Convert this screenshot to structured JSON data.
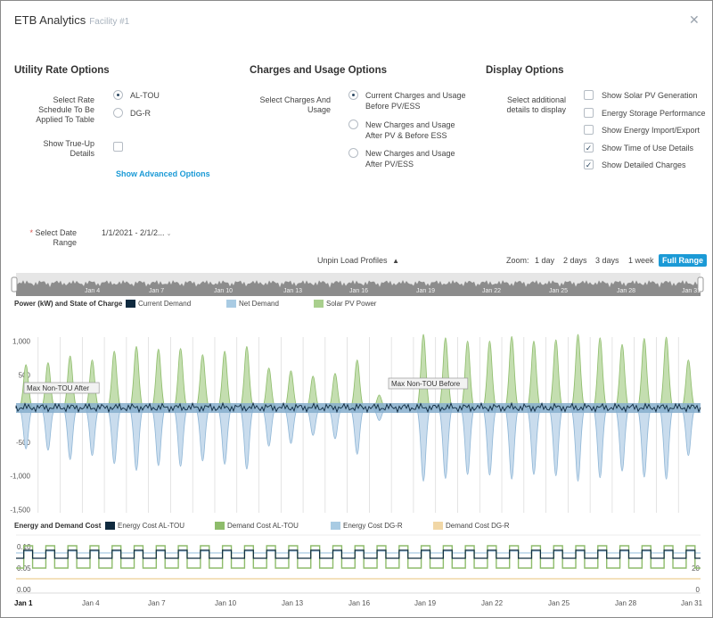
{
  "header": {
    "title": "ETB Analytics",
    "subtitle": "Facility #1",
    "close_icon": "close-icon"
  },
  "utility": {
    "title": "Utility Rate Options",
    "schedule_label_1": "Select Rate",
    "schedule_label_2": "Schedule To Be",
    "schedule_label_3": "Applied To Table",
    "options": [
      "AL-TOU",
      "DG-R"
    ],
    "selected": "AL-TOU",
    "trueup_label_1": "Show True-Up",
    "trueup_label_2": "Details",
    "advanced_link": "Show Advanced Options"
  },
  "charges": {
    "title": "Charges and Usage Options",
    "label_1": "Select Charges And",
    "label_2": "Usage",
    "options": [
      [
        "Current Charges and Usage",
        "Before PV/ESS"
      ],
      [
        "New Charges and Usage",
        "After PV & Before ESS"
      ],
      [
        "New Charges and Usage",
        "After PV/ESS"
      ]
    ]
  },
  "display": {
    "title": "Display Options",
    "label_1": "Select additional",
    "label_2": "details to display",
    "options": [
      {
        "label": "Show Solar PV Generation",
        "checked": false
      },
      {
        "label": "Energy Storage Performance",
        "checked": false
      },
      {
        "label": "Show Energy Import/Export",
        "checked": false
      },
      {
        "label": "Show Time of Use Details",
        "checked": true
      },
      {
        "label": "Show Detailed Charges",
        "checked": true
      }
    ]
  },
  "date": {
    "required_mark": "*",
    "label_1": "Select Date",
    "label_2": "Range",
    "value": "1/1/2021 - 2/1/2..."
  },
  "toolbar": {
    "unpin": "Unpin Load Profiles",
    "zoom_label": "Zoom:",
    "zoom_options": [
      "1 day",
      "2 days",
      "3 days",
      "1 week",
      "Full Range"
    ],
    "zoom_active": "Full Range"
  },
  "navigator": {
    "labels": [
      "Jan 4",
      "Jan 7",
      "Jan 10",
      "Jan 13",
      "Jan 16",
      "Jan 19",
      "Jan 22",
      "Jan 25",
      "Jan 28",
      "Jan 31"
    ]
  },
  "chart_data": [
    {
      "type": "area",
      "title": "Power (kW) and State of Charge",
      "series": [
        {
          "name": "Current Demand",
          "color": "#0f2a3f"
        },
        {
          "name": "Net Demand",
          "color": "#a9cbe3"
        },
        {
          "name": "Solar PV Power",
          "color": "#a9cf8d"
        }
      ],
      "yticks": [
        "1,000",
        "500",
        "0",
        "-500",
        "-1,000",
        "-1,500"
      ],
      "ylim": [
        -1500,
        1000
      ],
      "x": [
        "Jan 1",
        "Jan 2",
        "Jan 3",
        "Jan 4",
        "Jan 5",
        "Jan 6",
        "Jan 7",
        "Jan 8",
        "Jan 9",
        "Jan 10",
        "Jan 11",
        "Jan 12",
        "Jan 13",
        "Jan 14",
        "Jan 15",
        "Jan 16",
        "Jan 17",
        "Jan 18",
        "Jan 19",
        "Jan 20",
        "Jan 21",
        "Jan 22",
        "Jan 23",
        "Jan 24",
        "Jan 25",
        "Jan 26",
        "Jan 27",
        "Jan 28",
        "Jan 29",
        "Jan 30",
        "Jan 31"
      ],
      "solar_peak": [
        650,
        680,
        780,
        720,
        850,
        920,
        880,
        890,
        800,
        850,
        920,
        600,
        560,
        480,
        520,
        720,
        200,
        0,
        1100,
        1050,
        1000,
        1000,
        1070,
        1000,
        1020,
        1100,
        1050,
        950,
        1040,
        1060,
        720
      ],
      "net_min": [
        -600,
        -620,
        -760,
        -700,
        -820,
        -920,
        -850,
        -860,
        -780,
        -830,
        -900,
        -560,
        -520,
        -400,
        -450,
        -680,
        -180,
        0,
        -1080,
        -1040,
        -980,
        -990,
        -1050,
        -980,
        -1000,
        -1080,
        -1030,
        -930,
        -1020,
        -1050,
        -700
      ],
      "annotations": [
        {
          "label": "Max Non-TOU After"
        },
        {
          "label": "Max Non-TOU Before"
        }
      ]
    },
    {
      "type": "line",
      "title": "Energy and Demand Cost",
      "series": [
        {
          "name": "Energy Cost AL-TOU",
          "color": "#0f2a3f"
        },
        {
          "name": "Demand Cost AL-TOU",
          "color": "#8ebc6b"
        },
        {
          "name": "Energy Cost DG-R",
          "color": "#a9cbe3"
        },
        {
          "name": "Demand Cost DG-R",
          "color": "#f1d7a6"
        }
      ],
      "yticks_left": [
        "0.10",
        "0.05",
        "0.00"
      ],
      "yticks_right": [
        "",
        "20",
        "0"
      ],
      "xticks": [
        "Jan 1",
        "Jan 4",
        "Jan 7",
        "Jan 10",
        "Jan 13",
        "Jan 16",
        "Jan 19",
        "Jan 22",
        "Jan 25",
        "Jan 28",
        "Jan 31"
      ]
    }
  ]
}
